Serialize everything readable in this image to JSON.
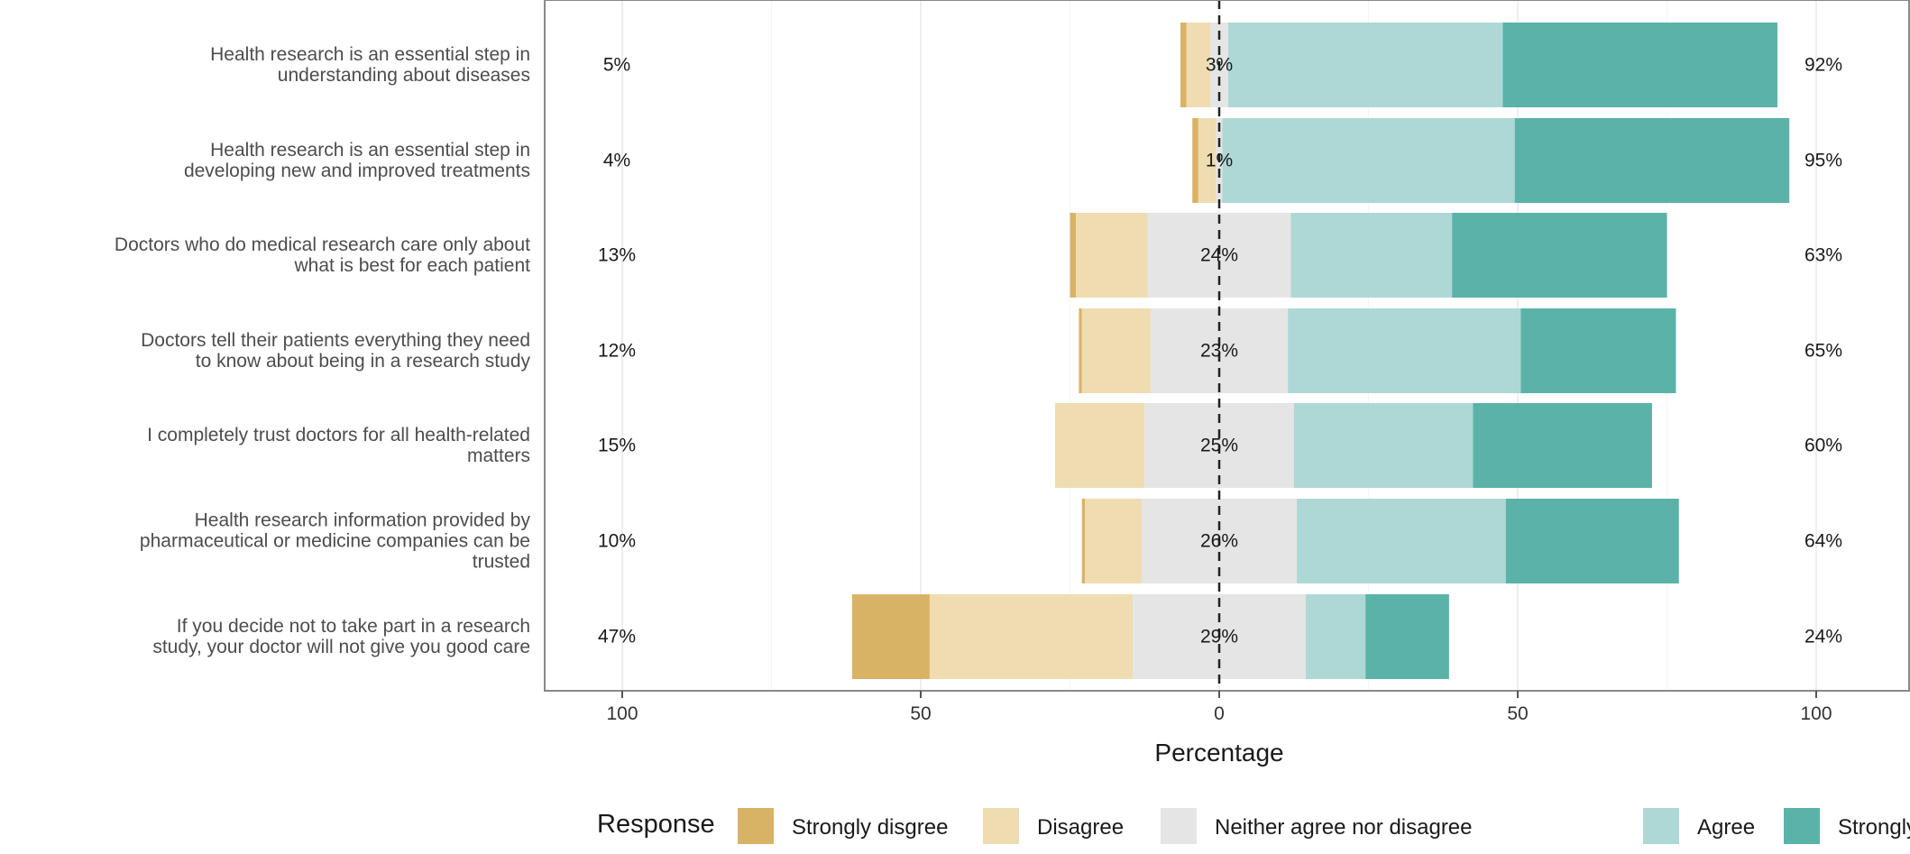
{
  "chart_data": {
    "type": "bar",
    "orientation": "horizontal",
    "stacked": "diverging",
    "xlabel": "Percentage",
    "xlim": [
      -100,
      100
    ],
    "xticks": [
      -100,
      -50,
      0,
      50,
      100
    ],
    "xtick_labels": [
      "100",
      "50",
      "0",
      "50",
      "100"
    ],
    "grid": true,
    "legend_position": "bottom",
    "legend_title": "Response",
    "series": [
      {
        "name": "Strongly disgree",
        "color": "#d9b365"
      },
      {
        "name": "Disagree",
        "color": "#efdcb1"
      },
      {
        "name": "Neither agree nor disagree",
        "color": "#e5e5e5"
      },
      {
        "name": "Agree",
        "color": "#aed8d5"
      },
      {
        "name": "Strongly agree",
        "color": "#5bb2a8"
      }
    ],
    "categories": [
      "Health research is an essential step in understanding about diseases",
      "Health research is an essential step in developing new and improved treatments",
      "Doctors who do medical research care only about what is best for each patient",
      "Doctors tell their patients everything they need to know about being in a research study",
      "I completely trust doctors for all health-related matters",
      "Health research information provided by pharmaceutical or medicine companies can be trusted",
      "If you decide not to take part in a research study, your doctor will not give you good care"
    ],
    "category_lines": [
      [
        "Health research is an essential step in",
        "understanding about diseases"
      ],
      [
        "Health research is an essential step in",
        "developing new and improved treatments"
      ],
      [
        "Doctors who do medical research care only about",
        "what is best for each patient"
      ],
      [
        "Doctors tell their patients everything they need",
        "to know about being in a research study"
      ],
      [
        "I completely trust doctors for all health-related",
        "matters"
      ],
      [
        "Health research information provided by",
        "pharmaceutical or medicine companies can be",
        "trusted"
      ],
      [
        "If you decide not to take part in a research",
        "study, your doctor will not give you good care"
      ]
    ],
    "values": [
      [
        1,
        4,
        3,
        46,
        46
      ],
      [
        1,
        3,
        1,
        49,
        46
      ],
      [
        1,
        12,
        24,
        27,
        36
      ],
      [
        0.5,
        11.5,
        23,
        39,
        26
      ],
      [
        0,
        15,
        25,
        30,
        30
      ],
      [
        0.5,
        9.5,
        26,
        35,
        29
      ],
      [
        13,
        34,
        29,
        10,
        14
      ]
    ],
    "left_labels": [
      "5%",
      "4%",
      "13%",
      "12%",
      "15%",
      "10%",
      "47%"
    ],
    "center_labels": [
      "3%",
      "1%",
      "24%",
      "23%",
      "25%",
      "26%",
      "29%"
    ],
    "right_labels": [
      "92%",
      "95%",
      "63%",
      "65%",
      "60%",
      "64%",
      "24%"
    ]
  }
}
